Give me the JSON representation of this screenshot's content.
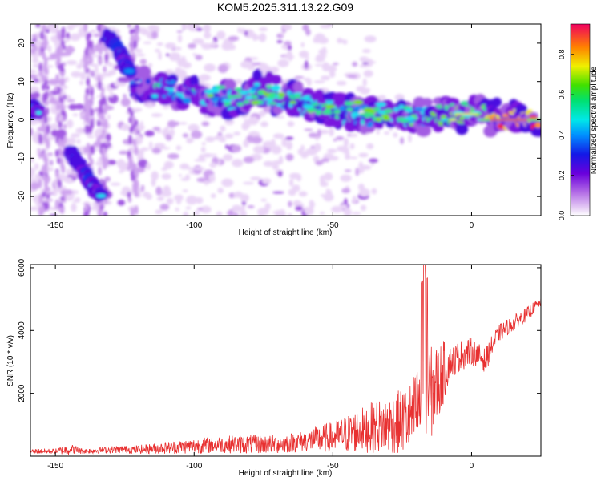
{
  "title": "KOM5.2025.311.13.22.G09",
  "colorbar": {
    "label": "Normalized spectral amplitude",
    "ticks": [
      "0.0",
      "0.2",
      "0.4",
      "0.6",
      "0.8"
    ],
    "tick_values": [
      0.0,
      0.2,
      0.4,
      0.6,
      0.8
    ],
    "range": [
      0.0,
      0.95
    ]
  },
  "chart_data": [
    {
      "type": "heatmap",
      "title": "KOM5.2025.311.13.22.G09",
      "xlabel": "Height of straight line (km)",
      "ylabel": "Frequency (Hz)",
      "xlim": [
        -159,
        25
      ],
      "ylim": [
        -25,
        25
      ],
      "xticks": [
        -150,
        -100,
        -50,
        0
      ],
      "xtick_labels": [
        "-150",
        "-100",
        "-50",
        "0"
      ],
      "yticks": [
        -20,
        -10,
        0,
        10,
        20
      ],
      "ytick_labels": [
        "-20",
        "-10",
        "0",
        "10",
        "20"
      ],
      "colormap": "rainbow (white-violet-blue-cyan-green-yellow-red)",
      "ridges": [
        {
          "name": "main-descending-ridge",
          "points": [
            [
              -122,
              8
            ],
            [
              -110,
              8
            ],
            [
              -100,
              7
            ],
            [
              -92,
              6
            ],
            [
              -85,
              5
            ],
            [
              -78,
              7
            ],
            [
              -70,
              6
            ],
            [
              -60,
              4
            ],
            [
              -50,
              2
            ],
            [
              -40,
              1
            ],
            [
              -30,
              1
            ],
            [
              -20,
              0.5
            ],
            [
              -15,
              1
            ],
            [
              -5,
              2
            ],
            [
              0,
              2
            ],
            [
              5,
              1
            ],
            [
              10,
              0
            ],
            [
              20,
              0
            ],
            [
              25,
              0
            ]
          ]
        },
        {
          "name": "upper-diagonal-ridge",
          "points": [
            [
              -131,
              22
            ],
            [
              -127,
              18
            ],
            [
              -123,
              12
            ]
          ]
        },
        {
          "name": "lower-diagonal-ridge",
          "points": [
            [
              -145,
              -8
            ],
            [
              -140,
              -13
            ],
            [
              -134,
              -20
            ]
          ]
        },
        {
          "name": "left-edge-blob",
          "points": [
            [
              -159,
              3
            ],
            [
              -156,
              2
            ]
          ]
        }
      ],
      "peak_region_km": [
        -10,
        25
      ],
      "peak_frequency_hz": 0
    },
    {
      "type": "line",
      "xlabel": "Height of straight line (km)",
      "ylabel": "SNR (10 * v/v)",
      "xlim": [
        -159,
        25
      ],
      "ylim": [
        0,
        6100
      ],
      "xticks": [
        -150,
        -100,
        -50,
        0
      ],
      "xtick_labels": [
        "-150",
        "-100",
        "-50",
        "0"
      ],
      "yticks": [
        2000,
        4000,
        6000
      ],
      "ytick_labels": [
        "2000",
        "4000",
        "6000"
      ],
      "color": "#e83030",
      "series": [
        {
          "name": "SNR",
          "x": [
            -159,
            -150,
            -145,
            -140,
            -130,
            -120,
            -110,
            -100,
            -90,
            -80,
            -70,
            -60,
            -55,
            -50,
            -45,
            -40,
            -35,
            -30,
            -25,
            -22,
            -20,
            -18,
            -15,
            -12,
            -10,
            -8,
            -5,
            -3,
            0,
            2,
            5,
            8,
            10,
            15,
            20,
            25
          ],
          "baseline": [
            150,
            150,
            200,
            150,
            200,
            200,
            250,
            300,
            350,
            350,
            350,
            450,
            500,
            550,
            650,
            750,
            850,
            900,
            1000,
            1100,
            1300,
            1500,
            1800,
            2200,
            2600,
            2900,
            3100,
            3200,
            3300,
            3200,
            3000,
            3600,
            3900,
            4200,
            4500,
            4900
          ],
          "amplitude": [
            150,
            150,
            350,
            150,
            200,
            250,
            350,
            450,
            500,
            550,
            550,
            600,
            800,
            900,
            1100,
            1300,
            1500,
            1700,
            1900,
            2100,
            2500,
            2900,
            2800,
            2300,
            1800,
            1000,
            900,
            900,
            800,
            700,
            700,
            600,
            500,
            450,
            400,
            300
          ],
          "peak": {
            "x": -17,
            "y": 6100
          }
        }
      ]
    }
  ]
}
